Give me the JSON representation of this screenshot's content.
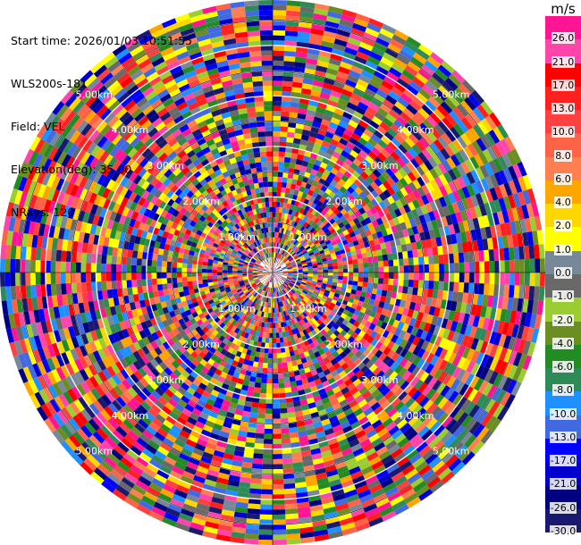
{
  "header": {
    "start_time": "Start time: 2026/01/03 10:51:55",
    "instrument": "WLS200s-181",
    "field": "Field: VEL",
    "elevation": "Elevation(deg): 35.00",
    "nrays": "NRays: 120"
  },
  "chart_data": {
    "type": "heatmap",
    "subtype": "polar-ppi",
    "field": "VEL",
    "nrays": 120,
    "elevation_deg": 35.0,
    "range_rings": [
      "1.00km",
      "2.00km",
      "3.00km",
      "4.00km",
      "5.00km"
    ],
    "range_max_km": 5.4,
    "gates": 54,
    "colorbar": {
      "unit": "m/s",
      "ticks": [
        "26.0",
        "21.0",
        "17.0",
        "13.0",
        "10.0",
        "8.0",
        "6.0",
        "4.0",
        "2.0",
        "1.0",
        "0.0",
        "-1.0",
        "-2.0",
        "-4.0",
        "-6.0",
        "-8.0",
        "-10.0",
        "-13.0",
        "-17.0",
        "-21.0",
        "-26.0",
        "-30.0"
      ],
      "colors": [
        "#ff1493",
        "#ff44aa",
        "#ff0000",
        "#ff2020",
        "#ff4040",
        "#ff6347",
        "#ff7f50",
        "#ffa500",
        "#ffd700",
        "#ffff00",
        "#778899",
        "#696969",
        "#9acd32",
        "#6b8e23",
        "#228b22",
        "#2e8b57",
        "#1e90ff",
        "#4169e1",
        "#0000ff",
        "#0000cd",
        "#000080",
        "#191970"
      ]
    }
  }
}
